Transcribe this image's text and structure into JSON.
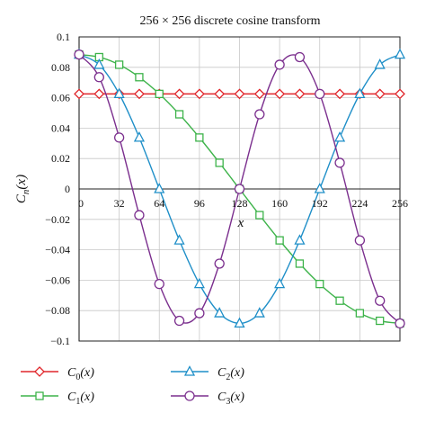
{
  "chart_data": {
    "type": "line",
    "title": "256 × 256 discrete cosine transform",
    "xlabel": "x",
    "ylabel": "Cn(x)",
    "xlim": [
      0,
      256
    ],
    "ylim": [
      -0.1,
      0.1
    ],
    "x_ticks": [
      0,
      32,
      64,
      96,
      128,
      160,
      192,
      224,
      256
    ],
    "x_tick_labels": [
      "0",
      "32",
      "64",
      "96",
      "128",
      "160",
      "192",
      "224",
      "256"
    ],
    "y_ticks": [
      0.1,
      0.08,
      0.06,
      0.04,
      0.02,
      0,
      -0.02,
      -0.04,
      -0.06,
      -0.08,
      -0.1
    ],
    "y_tick_labels": [
      "0.1",
      "0.08",
      "0.06",
      "0.04",
      "0.02",
      "0",
      "−0.02",
      "−0.04",
      "−0.06",
      "−0.08",
      "−0.1"
    ],
    "grid": true,
    "legend_position": "bottom",
    "series": [
      {
        "name": "C0(x)",
        "color": "#e0262b",
        "marker": "diamond",
        "x": [
          0,
          16,
          32,
          48,
          64,
          80,
          96,
          112,
          128,
          144,
          160,
          176,
          192,
          208,
          224,
          240,
          256
        ],
        "y": [
          0.0625,
          0.0625,
          0.0625,
          0.0625,
          0.0625,
          0.0625,
          0.0625,
          0.0625,
          0.0625,
          0.0625,
          0.0625,
          0.0625,
          0.0625,
          0.0625,
          0.0625,
          0.0625,
          0.0625
        ]
      },
      {
        "name": "C1(x)",
        "color": "#3db34a",
        "marker": "square",
        "x": [
          0,
          16,
          32,
          48,
          64,
          80,
          96,
          112,
          128,
          144,
          160,
          176,
          192,
          208,
          224,
          240,
          256
        ],
        "y": [
          0.0884,
          0.0867,
          0.0817,
          0.0735,
          0.0625,
          0.0491,
          0.0338,
          0.0172,
          0,
          -0.0172,
          -0.0338,
          -0.0491,
          -0.0625,
          -0.0735,
          -0.0817,
          -0.0867,
          -0.0884
        ]
      },
      {
        "name": "C2(x)",
        "color": "#1f8fc8",
        "marker": "triangle",
        "x": [
          0,
          16,
          32,
          48,
          64,
          80,
          96,
          112,
          128,
          144,
          160,
          176,
          192,
          208,
          224,
          240,
          256
        ],
        "y": [
          0.0884,
          0.0817,
          0.0625,
          0.0338,
          0,
          -0.0338,
          -0.0625,
          -0.0817,
          -0.0884,
          -0.0817,
          -0.0625,
          -0.0338,
          0,
          0.0338,
          0.0625,
          0.0817,
          0.0884
        ]
      },
      {
        "name": "C3(x)",
        "color": "#7b2f8e",
        "marker": "circle",
        "x": [
          0,
          16,
          32,
          48,
          64,
          80,
          96,
          112,
          128,
          144,
          160,
          176,
          192,
          208,
          224,
          240,
          256
        ],
        "y": [
          0.0884,
          0.0735,
          0.0338,
          -0.0172,
          -0.0625,
          -0.0867,
          -0.0817,
          -0.0491,
          0,
          0.0491,
          0.0817,
          0.0867,
          0.0625,
          0.0172,
          -0.0338,
          -0.0735,
          -0.0884
        ]
      }
    ]
  }
}
